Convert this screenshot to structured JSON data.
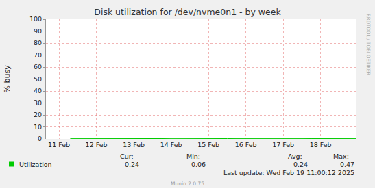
{
  "chart_data": {
    "type": "line",
    "title": "Disk utilization for /dev/nvme0n1 - by week",
    "y_label": "% busy",
    "side_text": "RRDTOOL / TOBI OETIKER",
    "footer": "Last update: Wed Feb 19 11:00:12 2025",
    "credit": "Munin 2.0.75",
    "x": [
      11.3,
      11.5,
      11.75,
      12.0,
      12.25,
      12.5,
      12.75,
      13.0,
      13.25,
      13.5,
      13.75,
      14.0,
      14.25,
      14.5,
      14.75,
      15.0,
      15.25,
      15.5,
      15.75,
      16.0,
      16.25,
      16.5,
      16.75,
      17.0,
      17.25,
      17.5,
      17.75,
      18.0,
      18.25,
      18.5,
      18.75,
      18.95
    ],
    "series": [
      {
        "name": "Utilization",
        "color": "#00cc00",
        "values": [
          0.22,
          0.25,
          0.31,
          0.18,
          0.24,
          0.27,
          0.06,
          0.21,
          0.26,
          0.23,
          0.29,
          0.19,
          0.24,
          0.47,
          0.22,
          0.25,
          0.2,
          0.28,
          0.23,
          0.17,
          0.26,
          0.24,
          0.3,
          0.21,
          0.25,
          0.22,
          0.27,
          0.2,
          0.26,
          0.23,
          0.25,
          0.24
        ],
        "stats": [
          0.24,
          0.06,
          0.24,
          0.47
        ]
      }
    ],
    "stats_headers": [
      "Cur:",
      "Min:",
      "Avg:",
      "Max:"
    ],
    "xlim": [
      10.65,
      18.96
    ],
    "xticks": [
      {
        "value": 11,
        "label": "11 Feb"
      },
      {
        "value": 12,
        "label": "12 Feb"
      },
      {
        "value": 13,
        "label": "13 Feb"
      },
      {
        "value": 14,
        "label": "14 Feb"
      },
      {
        "value": 15,
        "label": "15 Feb"
      },
      {
        "value": 16,
        "label": "16 Feb"
      },
      {
        "value": 17,
        "label": "17 Feb"
      },
      {
        "value": 18,
        "label": "18 Feb"
      }
    ],
    "ylim": [
      0,
      100
    ],
    "yticks": [
      0,
      10,
      20,
      30,
      40,
      50,
      60,
      70,
      80,
      90,
      100
    ],
    "grid": true
  }
}
